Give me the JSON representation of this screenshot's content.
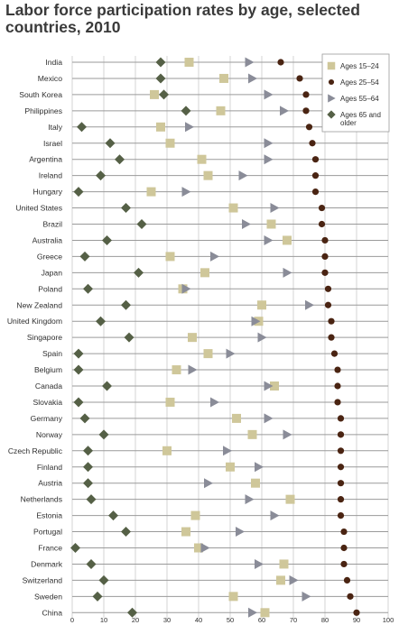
{
  "chart_data": {
    "type": "scatter",
    "title": "Labor force participation rates by age, selected countries, 2010",
    "xlim": [
      0,
      100
    ],
    "x_ticks": [
      "0",
      "10",
      "20",
      "30",
      "40",
      "50",
      "60",
      "70",
      "80",
      "90",
      "100"
    ],
    "grid": true,
    "legend_position": "top-right",
    "categories": [
      "India",
      "Mexico",
      "South Korea",
      "Philippines",
      "Italy",
      "Israel",
      "Argentina",
      "Ireland",
      "Hungary",
      "United States",
      "Brazil",
      "Australia",
      "Greece",
      "Japan",
      "Poland",
      "New Zealand",
      "United Kingdom",
      "Singapore",
      "Spain",
      "Belgium",
      "Canada",
      "Slovakia",
      "Germany",
      "Norway",
      "Czech Republic",
      "Finland",
      "Austria",
      "Netherlands",
      "Estonia",
      "Portugal",
      "France",
      "Denmark",
      "Switzerland",
      "Sweden",
      "China"
    ],
    "series": [
      {
        "name": "Ages 15–24",
        "marker": "square",
        "color": "#cfc79a",
        "values": [
          37,
          48,
          26,
          47,
          28,
          31,
          41,
          43,
          25,
          51,
          63,
          68,
          31,
          42,
          35,
          60,
          59,
          38,
          43,
          33,
          64,
          31,
          52,
          57,
          30,
          50,
          58,
          69,
          39,
          36,
          40,
          67,
          66,
          51,
          61
        ]
      },
      {
        "name": "Ages 25–54",
        "marker": "circle",
        "color": "#4a2412",
        "values": [
          66,
          72,
          74,
          74,
          75,
          76,
          77,
          77,
          77,
          79,
          79,
          80,
          80,
          80,
          81,
          81,
          82,
          82,
          83,
          84,
          84,
          84,
          85,
          85,
          85,
          85,
          85,
          85,
          85,
          86,
          86,
          86,
          87,
          88,
          90
        ]
      },
      {
        "name": "Ages 55–64",
        "marker": "triangle",
        "color": "#8a8c98",
        "values": [
          56,
          57,
          62,
          67,
          37,
          62,
          62,
          54,
          36,
          64,
          55,
          62,
          45,
          68,
          36,
          75,
          58,
          60,
          50,
          38,
          62,
          45,
          62,
          68,
          49,
          59,
          43,
          56,
          64,
          53,
          42,
          59,
          70,
          74,
          57
        ]
      },
      {
        "name": "Ages 65 and older",
        "marker": "diamond",
        "color": "#556046",
        "values": [
          28,
          28,
          29,
          36,
          3,
          12,
          15,
          9,
          2,
          17,
          22,
          11,
          4,
          21,
          5,
          17,
          9,
          18,
          2,
          2,
          11,
          2,
          4,
          10,
          5,
          5,
          5,
          6,
          13,
          17,
          1,
          6,
          10,
          8,
          19
        ]
      }
    ]
  }
}
